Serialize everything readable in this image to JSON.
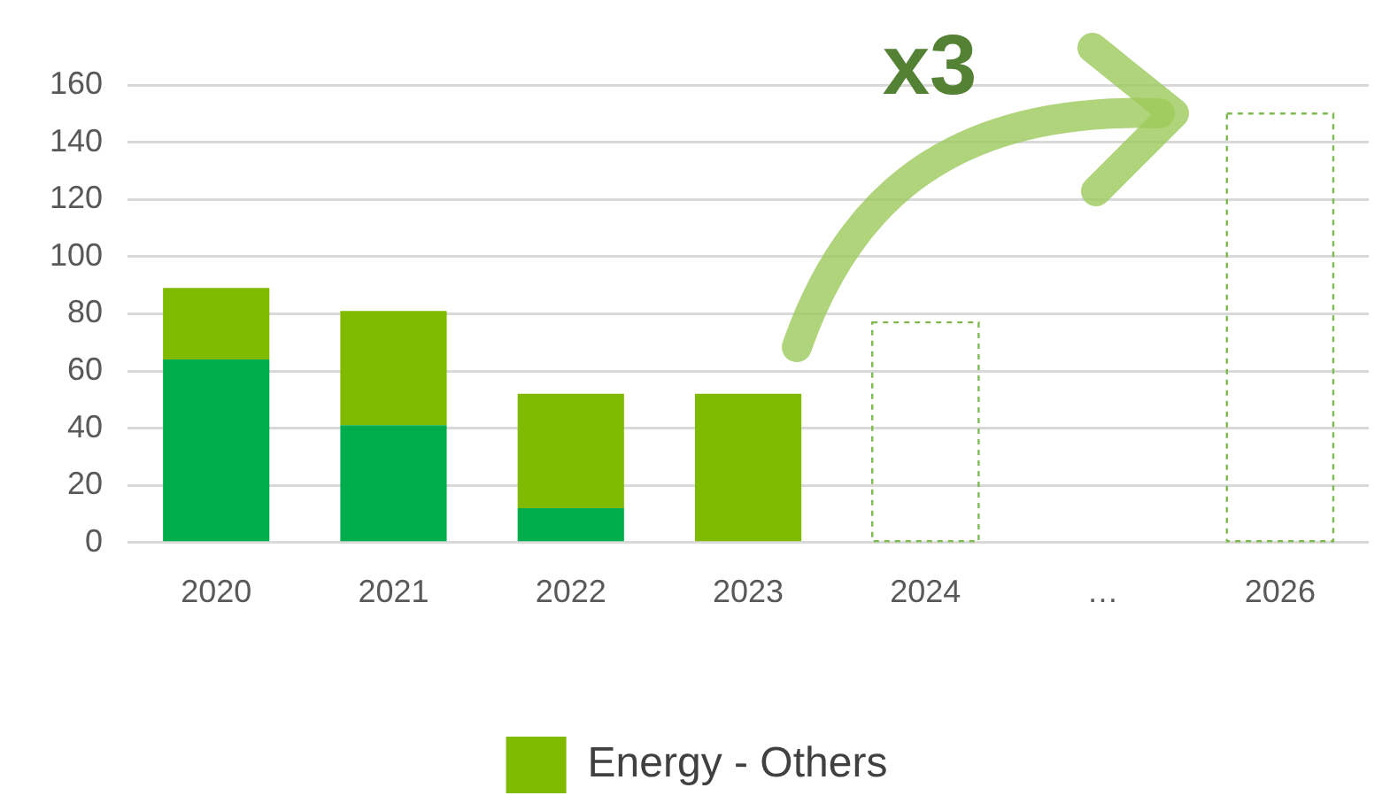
{
  "chart_data": {
    "type": "bar",
    "stacked": true,
    "categories": [
      "2020",
      "2021",
      "2022",
      "2023",
      "2024",
      "…",
      "2026"
    ],
    "series": [
      {
        "color": "#00ad4d",
        "values": [
          64,
          41,
          12,
          0,
          null,
          null,
          null
        ]
      },
      {
        "name": "Energy - Others",
        "color": "#7fba00",
        "values": [
          25,
          40,
          40,
          52,
          null,
          null,
          null
        ]
      },
      {
        "color": "#7fba50",
        "line_style": "dashed",
        "values": [
          null,
          null,
          null,
          null,
          77,
          null,
          150
        ]
      }
    ],
    "ylim": [
      0,
      160
    ],
    "yticks": [
      0,
      20,
      40,
      60,
      80,
      100,
      120,
      140,
      160
    ],
    "grid": "y",
    "legend": "bottom",
    "annotations": [
      "x3"
    ]
  }
}
